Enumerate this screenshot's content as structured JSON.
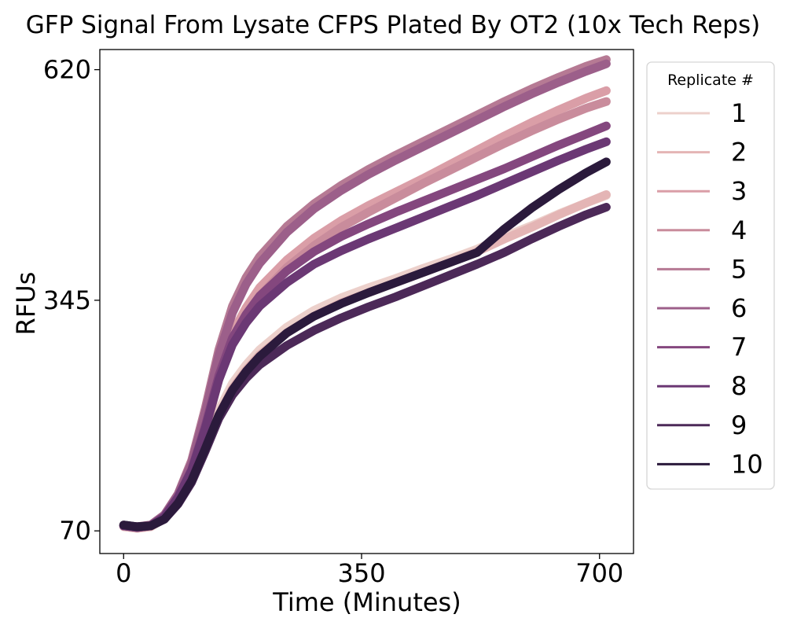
{
  "chart_data": {
    "type": "line",
    "title": "GFP Signal From Lysate CFPS Plated By OT2 (10x Tech Reps)",
    "xlabel": "Time (Minutes)",
    "ylabel": "RFUs",
    "xlim": [
      -35,
      750
    ],
    "ylim": [
      43,
      644
    ],
    "xticks": [
      0,
      350,
      700
    ],
    "yticks": [
      70,
      345,
      620
    ],
    "grid": false,
    "legend": {
      "title": "Replicate #",
      "placement": "right-outside"
    },
    "x": [
      0,
      20,
      40,
      60,
      80,
      100,
      120,
      140,
      160,
      180,
      200,
      240,
      280,
      320,
      360,
      400,
      440,
      480,
      520,
      560,
      600,
      640,
      680,
      710
    ],
    "series": [
      {
        "name": "1",
        "color": "#ecd0cb",
        "values": [
          77,
          74,
          76,
          86,
          106,
          132,
          172,
          214,
          246,
          268,
          286,
          313,
          333,
          348,
          360,
          371,
          383,
          394,
          406,
          421,
          434,
          448,
          461,
          470
        ]
      },
      {
        "name": "2",
        "color": "#e4b5b5",
        "values": [
          75,
          73,
          75,
          85,
          104,
          130,
          168,
          208,
          240,
          262,
          280,
          306,
          326,
          342,
          354,
          366,
          378,
          390,
          403,
          418,
          432,
          447,
          461,
          471
        ]
      },
      {
        "name": "3",
        "color": "#da9ea7",
        "values": [
          76,
          75,
          77,
          88,
          110,
          143,
          196,
          258,
          306,
          336,
          360,
          393,
          419,
          440,
          458,
          474,
          490,
          507,
          524,
          541,
          557,
          572,
          586,
          595
        ]
      },
      {
        "name": "4",
        "color": "#c98c9c",
        "values": [
          76,
          74,
          76,
          87,
          109,
          140,
          190,
          250,
          296,
          326,
          350,
          384,
          410,
          432,
          450,
          467,
          484,
          500,
          516,
          532,
          547,
          561,
          574,
          582
        ]
      },
      {
        "name": "5",
        "color": "#b67a94",
        "values": [
          76,
          74,
          77,
          89,
          114,
          154,
          216,
          286,
          338,
          372,
          397,
          433,
          460,
          482,
          501,
          518,
          534,
          550,
          566,
          582,
          597,
          611,
          624,
          632
        ]
      },
      {
        "name": "6",
        "color": "#9c5f8a",
        "values": [
          76,
          75,
          77,
          89,
          113,
          151,
          211,
          280,
          330,
          364,
          389,
          426,
          454,
          476,
          495,
          512,
          528,
          544,
          560,
          576,
          591,
          605,
          618,
          627
        ]
      },
      {
        "name": "7",
        "color": "#84477e",
        "values": [
          76,
          74,
          76,
          87,
          110,
          143,
          195,
          255,
          300,
          328,
          350,
          380,
          403,
          421,
          436,
          450,
          463,
          476,
          489,
          502,
          516,
          530,
          543,
          553
        ]
      },
      {
        "name": "8",
        "color": "#6b3874",
        "values": [
          76,
          74,
          76,
          87,
          110,
          142,
          192,
          250,
          292,
          318,
          338,
          366,
          388,
          404,
          418,
          431,
          444,
          457,
          470,
          484,
          498,
          512,
          525,
          534
        ]
      },
      {
        "name": "9",
        "color": "#4c2958",
        "values": [
          77,
          75,
          76,
          84,
          102,
          128,
          165,
          204,
          232,
          252,
          268,
          291,
          309,
          324,
          337,
          349,
          362,
          375,
          388,
          402,
          418,
          433,
          447,
          456
        ]
      },
      {
        "name": "10",
        "color": "#2b1a3c",
        "values": [
          77,
          75,
          76,
          84,
          103,
          130,
          168,
          208,
          238,
          260,
          278,
          306,
          326,
          341,
          354,
          366,
          378,
          390,
          402,
          430,
          455,
          477,
          497,
          510
        ]
      }
    ]
  }
}
